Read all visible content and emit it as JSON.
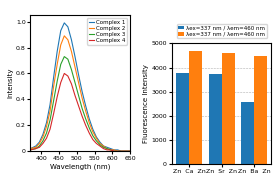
{
  "chart_data": [
    {
      "type": "line",
      "x_label": "Wavelength (nm)",
      "y_label": "Intensity",
      "x": [
        370,
        385,
        395,
        405,
        415,
        425,
        435,
        445,
        455,
        465,
        475,
        485,
        495,
        505,
        515,
        525,
        535,
        545,
        555,
        565,
        575,
        585,
        595,
        605,
        615,
        625,
        635,
        645,
        650
      ],
      "series": [
        {
          "name": "Complex 1",
          "values": [
            0.02,
            0.04,
            0.07,
            0.13,
            0.22,
            0.36,
            0.57,
            0.77,
            0.93,
            0.99,
            0.96,
            0.86,
            0.73,
            0.59,
            0.46,
            0.35,
            0.25,
            0.17,
            0.11,
            0.07,
            0.04,
            0.03,
            0.02,
            0.01,
            0.01,
            0.0,
            0.0,
            0.0,
            0.0
          ]
        },
        {
          "name": "Complex 2",
          "values": [
            0.02,
            0.03,
            0.06,
            0.11,
            0.19,
            0.31,
            0.5,
            0.67,
            0.82,
            0.89,
            0.86,
            0.77,
            0.65,
            0.53,
            0.41,
            0.31,
            0.22,
            0.15,
            0.1,
            0.06,
            0.04,
            0.02,
            0.01,
            0.01,
            0.0,
            0.0,
            0.0,
            0.0,
            0.0
          ]
        },
        {
          "name": "Complex 3",
          "values": [
            0.01,
            0.02,
            0.04,
            0.08,
            0.14,
            0.24,
            0.39,
            0.54,
            0.67,
            0.73,
            0.71,
            0.63,
            0.53,
            0.43,
            0.33,
            0.25,
            0.18,
            0.12,
            0.08,
            0.05,
            0.03,
            0.02,
            0.01,
            0.0,
            0.0,
            0.0,
            0.0,
            0.0,
            0.0
          ]
        },
        {
          "name": "Complex 4",
          "values": [
            0.01,
            0.02,
            0.03,
            0.06,
            0.1,
            0.17,
            0.29,
            0.42,
            0.53,
            0.6,
            0.58,
            0.52,
            0.43,
            0.35,
            0.27,
            0.2,
            0.14,
            0.09,
            0.06,
            0.04,
            0.02,
            0.01,
            0.01,
            0.0,
            0.0,
            0.0,
            0.0,
            0.0,
            0.0
          ]
        }
      ],
      "xlim": [
        370,
        650
      ],
      "ylim": [
        0,
        1.05
      ],
      "xticks": [
        400,
        450,
        500,
        550,
        600,
        650
      ],
      "yticks": [
        0,
        0.2,
        0.4,
        0.6,
        0.8,
        1.0
      ],
      "legend": "upper right"
    },
    {
      "type": "bar",
      "y_label": "Fluorescence Intensity",
      "categories": [
        "Zn  Ca  Zn",
        "Zn  Sr  Zn",
        "Zn  Ba  Zn"
      ],
      "series": [
        {
          "name": "λex=337 nm / λem=460 nm",
          "values": [
            3800,
            3750,
            2600
          ]
        },
        {
          "name": "λex=337 nm / λem=460 nm",
          "values": [
            4700,
            4600,
            4500
          ]
        }
      ],
      "ylim": [
        0,
        5000
      ],
      "yticks": [
        0,
        1000,
        2000,
        3000,
        4000,
        5000
      ],
      "grid": true
    }
  ]
}
